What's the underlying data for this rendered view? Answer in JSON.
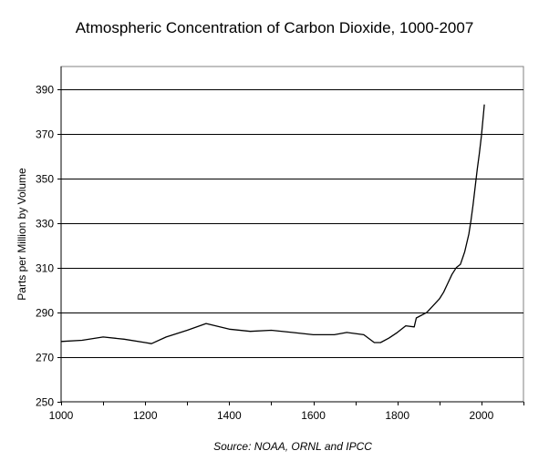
{
  "chart_data": {
    "type": "line",
    "title": "Atmospheric Concentration of Carbon Dioxide, 1000-2007",
    "ylabel": "Parts per Million by Volume",
    "xlabel": "",
    "source": "Source: NOAA, ORNL and IPCC",
    "xlim": [
      1000,
      2100
    ],
    "ylim": [
      250,
      400
    ],
    "xticks": [
      1000,
      1200,
      1400,
      1600,
      1800,
      2000
    ],
    "yticks": [
      250,
      270,
      290,
      310,
      330,
      350,
      370,
      390
    ],
    "grid": "horizontal",
    "legend": "none",
    "series": [
      {
        "color": "#000000",
        "x": [
          1000,
          1050,
          1100,
          1150,
          1200,
          1215,
          1250,
          1300,
          1345,
          1400,
          1450,
          1500,
          1550,
          1600,
          1650,
          1680,
          1720,
          1745,
          1760,
          1780,
          1800,
          1820,
          1840,
          1845,
          1870,
          1890,
          1900,
          1910,
          1920,
          1930,
          1940,
          1950,
          1960,
          1970,
          1975,
          1980,
          1985,
          1990,
          1995,
          2000,
          2005,
          2007
        ],
        "y": [
          277,
          277.5,
          279,
          278,
          276.5,
          276,
          279,
          282,
          285,
          282.5,
          281.5,
          282,
          281,
          280,
          280,
          281,
          280,
          276.5,
          276.5,
          278.5,
          281,
          284,
          283.5,
          287.5,
          290,
          294,
          296,
          299,
          303,
          307,
          310,
          311.5,
          317,
          325,
          331,
          338,
          346,
          354,
          361,
          369,
          379,
          383
        ]
      }
    ]
  }
}
